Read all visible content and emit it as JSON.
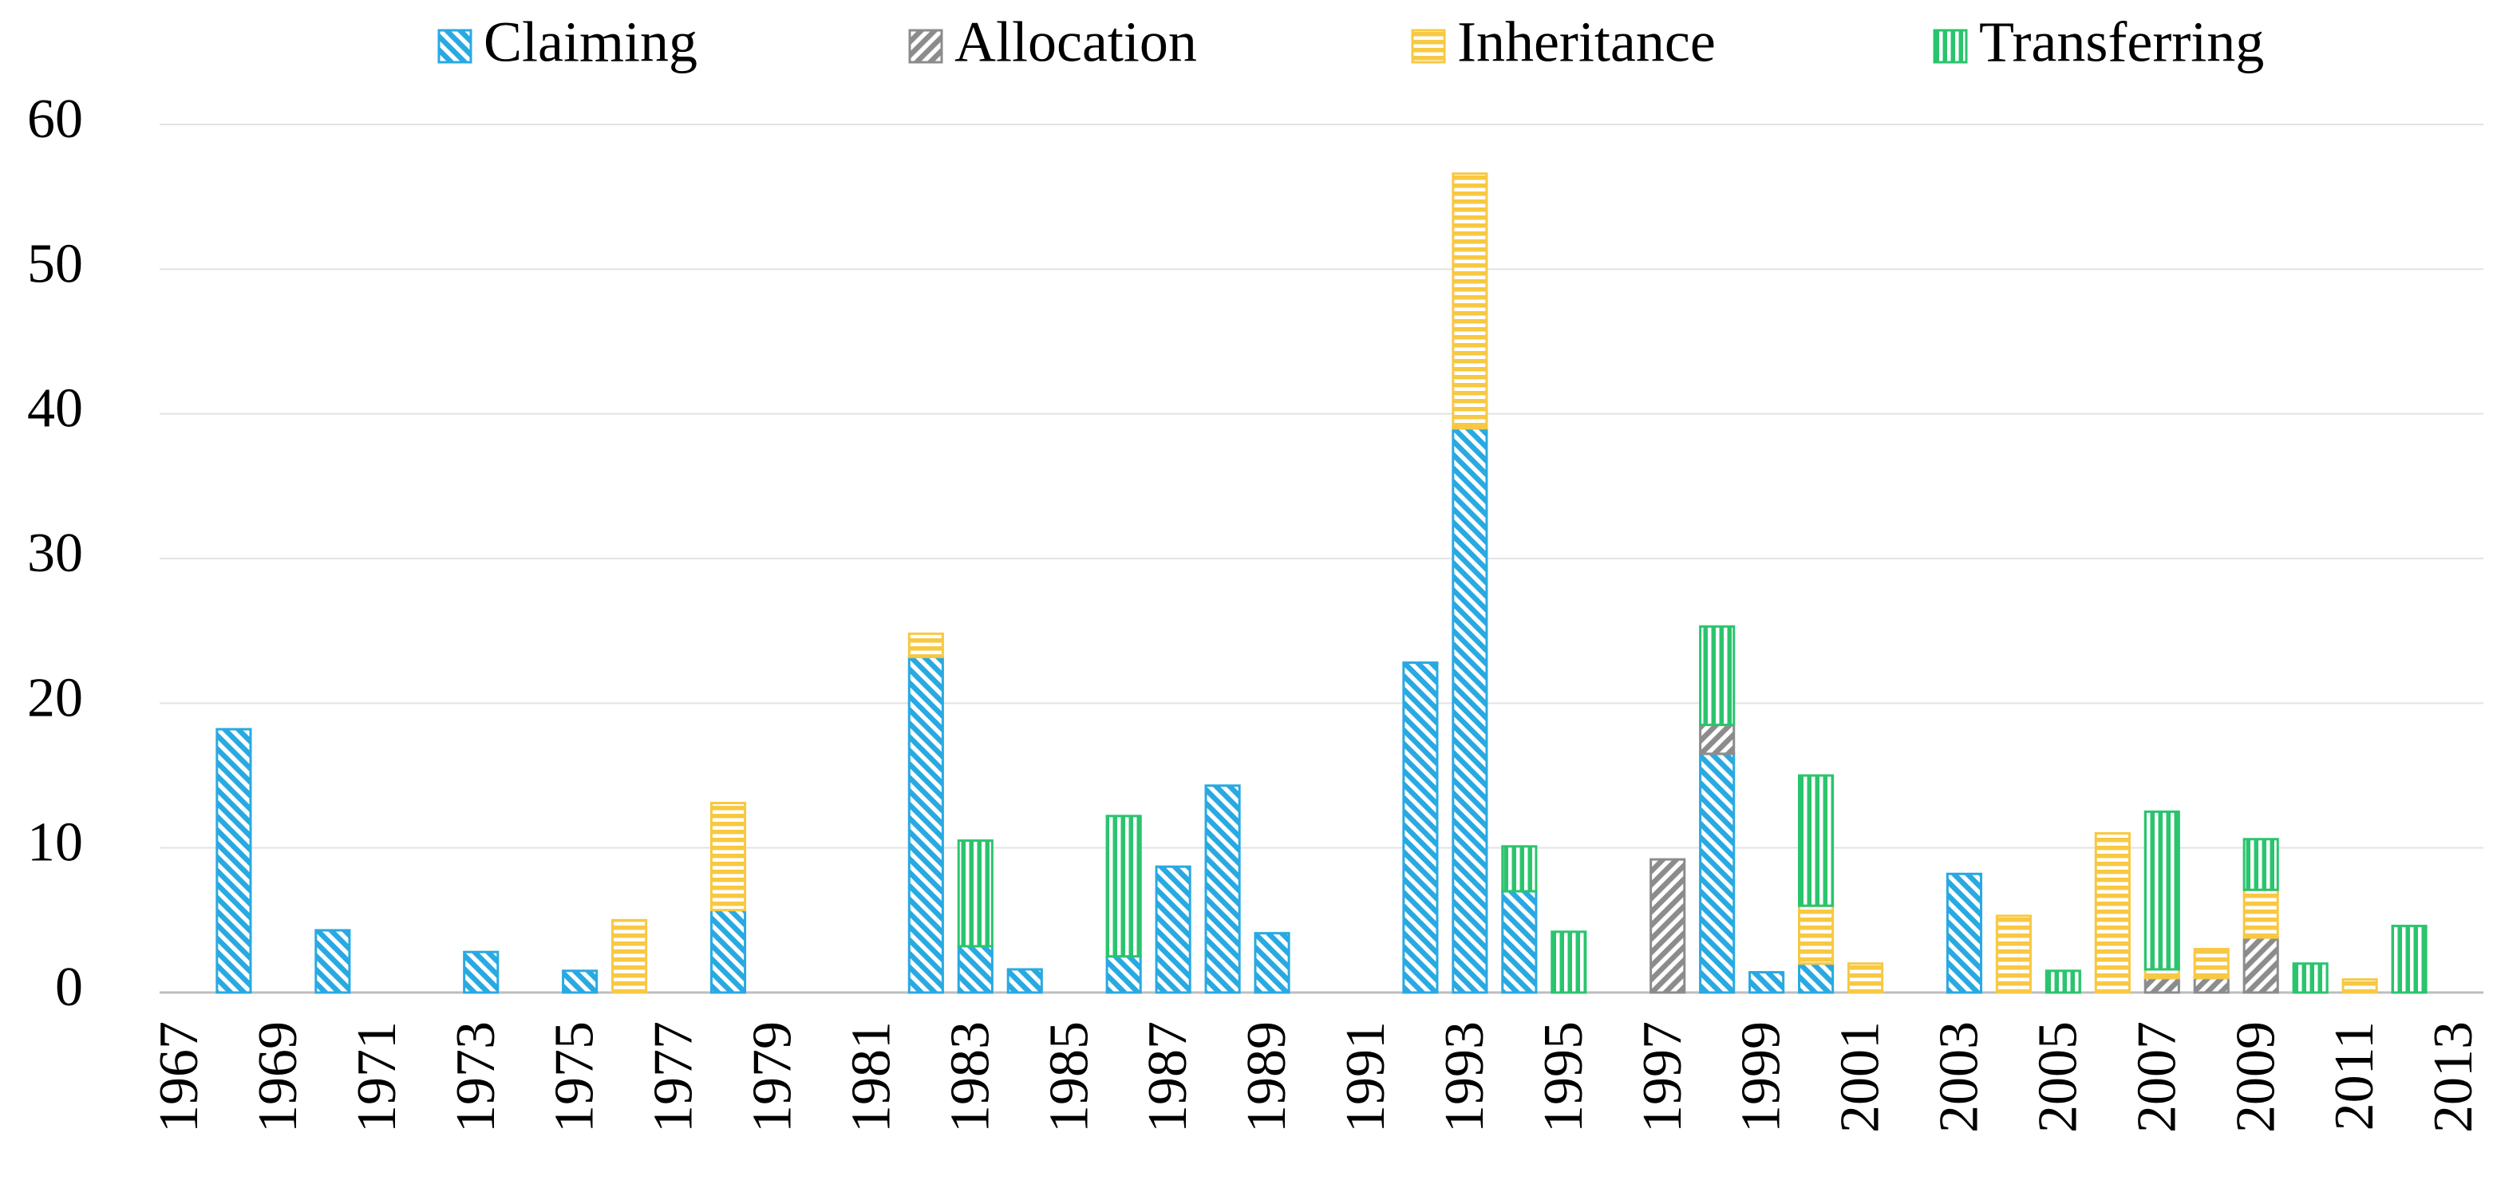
{
  "chart_data": {
    "type": "stacked-bar",
    "categories": [
      "1967",
      null,
      "1969",
      null,
      "1971",
      null,
      "1973",
      null,
      "1975",
      null,
      "1977",
      null,
      "1979",
      null,
      "1981",
      null,
      "1983",
      null,
      "1985",
      null,
      "1987",
      null,
      "1989",
      null,
      "1991",
      null,
      "1993",
      null,
      "1995",
      null,
      "1997",
      null,
      "1999",
      null,
      "2001",
      null,
      "2003",
      null,
      "2005",
      null,
      "2007",
      null,
      "2009",
      null,
      "2011",
      null,
      "2013"
    ],
    "series": [
      {
        "name": "Claiming",
        "color": "#29a9e1",
        "values": [
          null,
          18.2,
          null,
          4.3,
          null,
          null,
          2.8,
          null,
          1.5,
          null,
          null,
          5.7,
          null,
          null,
          null,
          23.2,
          3.2,
          1.6,
          null,
          2.5,
          8.7,
          14.3,
          4.1,
          null,
          null,
          22.8,
          39.0,
          7.0,
          null,
          null,
          null,
          16.5,
          1.4,
          2.0,
          null,
          null,
          8.2,
          null,
          null,
          null,
          null,
          null,
          null,
          null,
          null,
          null,
          null
        ]
      },
      {
        "name": "Allocation",
        "color": "#8c8c8c",
        "values": [
          null,
          null,
          null,
          null,
          null,
          null,
          null,
          null,
          null,
          null,
          null,
          null,
          null,
          null,
          null,
          null,
          null,
          null,
          null,
          null,
          null,
          null,
          null,
          null,
          null,
          null,
          null,
          null,
          null,
          null,
          9.2,
          2.0,
          null,
          null,
          null,
          null,
          null,
          null,
          null,
          null,
          1.0,
          1.0,
          3.8,
          null,
          null,
          null,
          null
        ]
      },
      {
        "name": "Inheritance",
        "color": "#f7c842",
        "values": [
          null,
          null,
          null,
          null,
          null,
          null,
          null,
          null,
          null,
          5.0,
          null,
          7.4,
          null,
          null,
          null,
          1.6,
          null,
          null,
          null,
          null,
          null,
          null,
          null,
          null,
          null,
          null,
          17.6,
          null,
          null,
          null,
          null,
          null,
          null,
          4.0,
          2.0,
          null,
          null,
          5.3,
          null,
          11.0,
          0.6,
          2.0,
          3.3,
          null,
          0.9,
          null,
          null
        ]
      },
      {
        "name": "Transferring",
        "color": "#2bc46e",
        "values": [
          null,
          null,
          null,
          null,
          null,
          null,
          null,
          null,
          null,
          null,
          null,
          null,
          null,
          null,
          null,
          null,
          7.3,
          null,
          null,
          9.7,
          null,
          null,
          null,
          null,
          null,
          null,
          null,
          3.1,
          4.2,
          null,
          null,
          6.8,
          null,
          9.0,
          null,
          null,
          null,
          null,
          1.5,
          null,
          10.9,
          null,
          3.5,
          2.0,
          null,
          4.6,
          null
        ]
      }
    ],
    "ylim": [
      0,
      60
    ],
    "yticks": [
      0,
      10,
      20,
      30,
      40,
      50,
      60
    ],
    "grid": true,
    "legend": "top"
  }
}
